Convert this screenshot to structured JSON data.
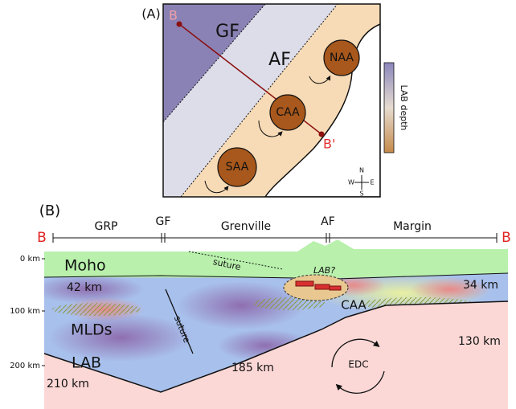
{
  "panel_a": {
    "label": "(A)",
    "point_b": "B",
    "point_b_prime": "B'",
    "gf": "GF",
    "af": "AF",
    "anomalies": [
      "NAA",
      "CAA",
      "SAA"
    ],
    "colorbar_label": "LAB depth",
    "compass": {
      "n": "N",
      "s": "S",
      "e": "E",
      "w": "W"
    }
  },
  "panel_b": {
    "label": "(B)",
    "start": "B",
    "end": "B",
    "provinces": [
      "GRP",
      "GF",
      "Grenville",
      "AF",
      "Margin"
    ],
    "depth_labels": [
      "0 km",
      "100 km",
      "200 km"
    ],
    "annotations": {
      "moho": "Moho",
      "suture_upper": "suture",
      "moho_west": "42 km",
      "moho_east": "34 km",
      "lab_question": "LAB?",
      "caa": "CAA",
      "mlds": "MLDs",
      "suture_lower": "suture",
      "lab_east": "130 km",
      "lab": "LAB",
      "lab_mid": "185 km",
      "edc": "EDC",
      "lab_west": "210 km"
    }
  }
}
